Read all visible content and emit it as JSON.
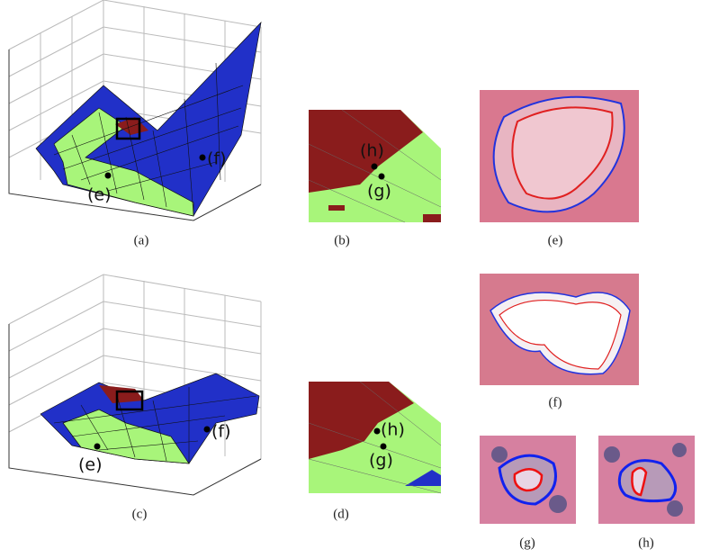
{
  "panels": [
    {
      "caption": "(a)",
      "labels": [
        "(e)",
        "(f)"
      ]
    },
    {
      "caption": "(b)",
      "labels": [
        "(h)",
        "(g)"
      ]
    },
    {
      "caption": "(c)",
      "labels": [
        "(e)",
        "(f)"
      ]
    },
    {
      "caption": "(d)",
      "labels": [
        "(h)",
        "(g)"
      ]
    },
    {
      "caption": "(e)"
    },
    {
      "caption": "(f)"
    },
    {
      "caption": "(g)"
    },
    {
      "caption": "(h)"
    }
  ]
}
